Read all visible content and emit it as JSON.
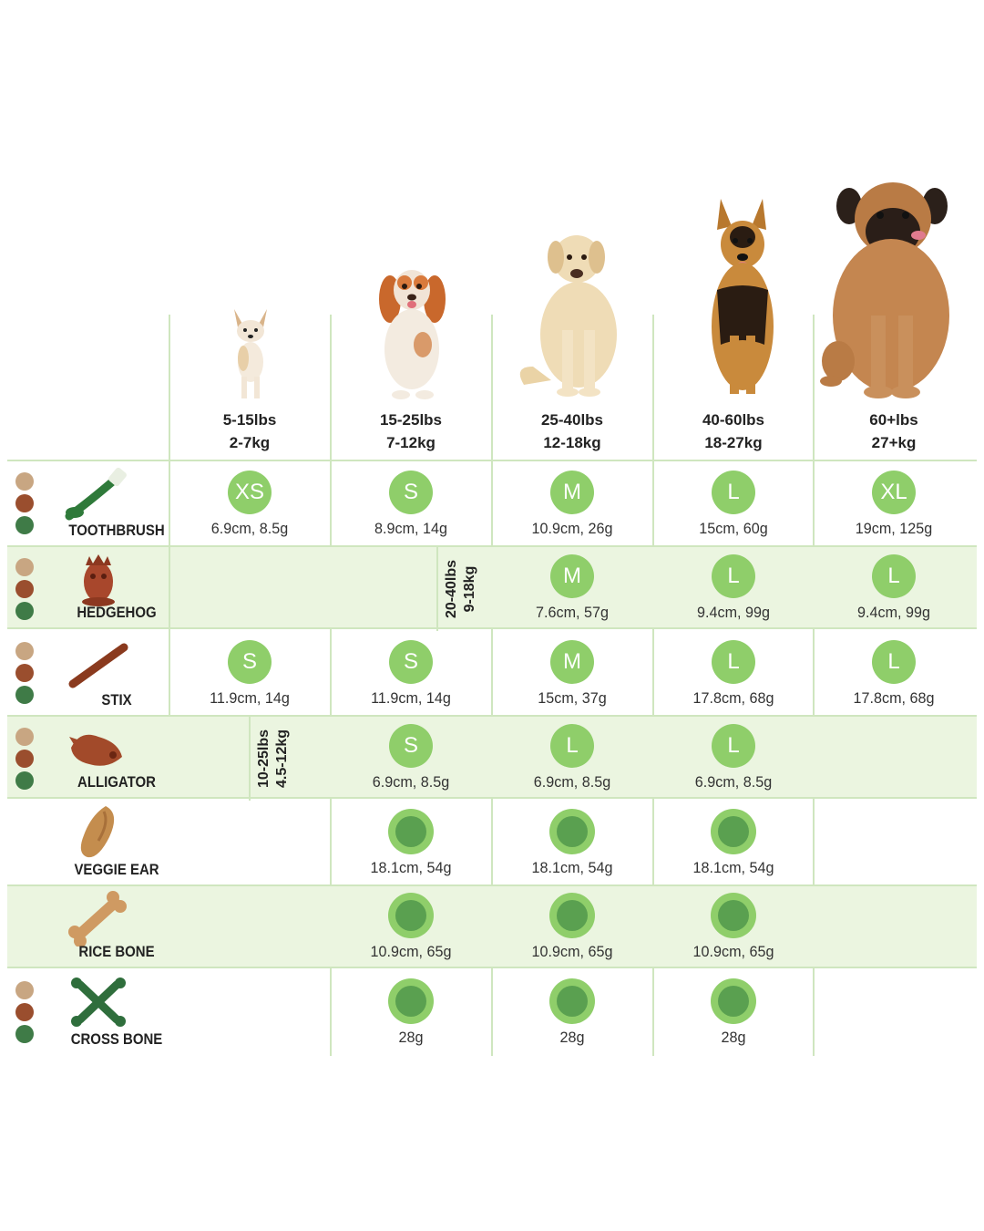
{
  "size_columns": [
    {
      "lbs": "5-15lbs",
      "kg": "2-7kg"
    },
    {
      "lbs": "15-25lbs",
      "kg": "7-12kg"
    },
    {
      "lbs": "25-40lbs",
      "kg": "12-18kg"
    },
    {
      "lbs": "40-60lbs",
      "kg": "18-27kg"
    },
    {
      "lbs": "60+lbs",
      "kg": "27+kg"
    }
  ],
  "colors": {
    "beige": "#c8a682",
    "brown": "#9a4e2e",
    "green": "#3f7b47",
    "badge": "#8fce6a",
    "badge_inner": "#5aa050"
  },
  "rows": [
    {
      "product": "TOOTHBRUSH",
      "icon": "toothbrush-icon",
      "dots": true,
      "cells": [
        {
          "size": "XS",
          "text": "6.9cm, 8.5g"
        },
        {
          "size": "S",
          "text": "8.9cm, 14g"
        },
        {
          "size": "M",
          "text": "10.9cm, 26g"
        },
        {
          "size": "L",
          "text": "15cm, 60g"
        },
        {
          "size": "XL",
          "text": "19cm, 125g"
        }
      ]
    },
    {
      "product": "HEDGEHOG",
      "icon": "hedgehog-icon",
      "dots": true,
      "tag": {
        "lbs": "20-40lbs",
        "kg": "9-18kg"
      },
      "cells": [
        null,
        null,
        {
          "size": "M",
          "text": "7.6cm, 57g"
        },
        {
          "size": "L",
          "text": "9.4cm, 99g"
        },
        {
          "size": "L",
          "text": "9.4cm, 99g"
        }
      ]
    },
    {
      "product": "STIX",
      "icon": "stick-icon",
      "dots": true,
      "cells": [
        {
          "size": "S",
          "text": "11.9cm, 14g"
        },
        {
          "size": "S",
          "text": "11.9cm, 14g"
        },
        {
          "size": "M",
          "text": "15cm, 37g"
        },
        {
          "size": "L",
          "text": "17.8cm, 68g"
        },
        {
          "size": "L",
          "text": "17.8cm, 68g"
        }
      ]
    },
    {
      "product": "ALLIGATOR",
      "icon": "alligator-icon",
      "dots": true,
      "tag": {
        "lbs": "10-25lbs",
        "kg": "4.5-12kg"
      },
      "cells": [
        null,
        {
          "size": "S",
          "text": "6.9cm, 8.5g"
        },
        {
          "size": "L",
          "text": "6.9cm, 8.5g"
        },
        {
          "size": "L",
          "text": "6.9cm, 8.5g"
        },
        null
      ]
    },
    {
      "product": "VEGGIE EAR",
      "icon": "veggie-ear-icon",
      "dots": false,
      "cells": [
        null,
        {
          "ring": true,
          "text": "18.1cm, 54g"
        },
        {
          "ring": true,
          "text": "18.1cm, 54g"
        },
        {
          "ring": true,
          "text": "18.1cm, 54g"
        },
        null
      ]
    },
    {
      "product": "RICE BONE",
      "icon": "rice-bone-icon",
      "dots": false,
      "cells": [
        null,
        {
          "ring": true,
          "text": "10.9cm, 65g"
        },
        {
          "ring": true,
          "text": "10.9cm, 65g"
        },
        {
          "ring": true,
          "text": "10.9cm, 65g"
        },
        null
      ]
    },
    {
      "product": "CROSS BONE",
      "icon": "cross-bone-icon",
      "dots": true,
      "cells": [
        null,
        {
          "ring": true,
          "text": "28g"
        },
        {
          "ring": true,
          "text": "28g"
        },
        {
          "ring": true,
          "text": "28g"
        },
        null
      ]
    }
  ]
}
